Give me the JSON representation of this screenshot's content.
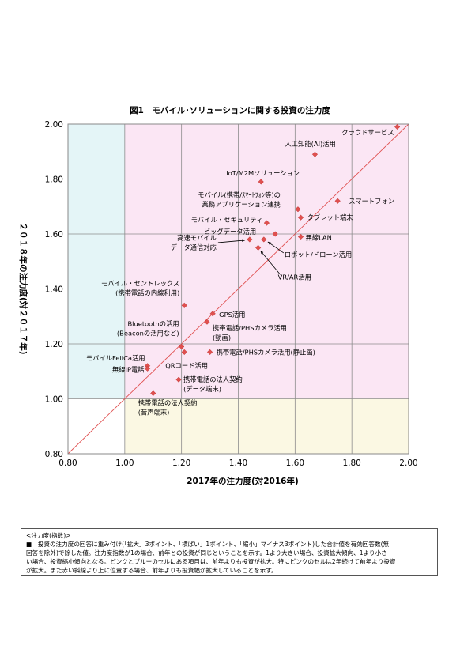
{
  "chart_data": {
    "type": "scatter",
    "title": "図1　モバイル･ソリューションに関する投資の注力度",
    "xlabel": "2017年の注力度(対2016年)",
    "ylabel": "２０１８年の注力度(対２０１７年)",
    "xlim": [
      0.8,
      2.0
    ],
    "ylim": [
      0.8,
      2.0
    ],
    "x_ticks": [
      "0.80",
      "1.00",
      "1.20",
      "1.40",
      "1.60",
      "1.80",
      "2.00"
    ],
    "y_ticks": [
      "0.80",
      "1.00",
      "1.20",
      "1.40",
      "1.60",
      "1.80",
      "2.00"
    ],
    "grid": true,
    "diagonal_line": true,
    "colors": {
      "pink_region": "#fbe6f4",
      "blue_region": "#e4f5f7",
      "yellow_region": "#fbf8e3",
      "marker": "#e0504f",
      "diagonal": "#e05050"
    },
    "points": [
      {
        "label": "クラウドサービス",
        "x": 1.96,
        "y": 1.99
      },
      {
        "label": "人工知能(AI)活用",
        "x": 1.67,
        "y": 1.89
      },
      {
        "label": "IoT/M2Mソリューション",
        "x": 1.48,
        "y": 1.79
      },
      {
        "label": "スマートフォン",
        "x": 1.75,
        "y": 1.72
      },
      {
        "label": "モバイル(携帯/ｽﾏｰﾄﾌｫﾝ等)の\n業務アプリケーション連携",
        "x": 1.61,
        "y": 1.69
      },
      {
        "label": "タブレット端末",
        "x": 1.62,
        "y": 1.66
      },
      {
        "label": "モバイル・セキュリティ",
        "x": 1.5,
        "y": 1.64
      },
      {
        "label": "ビッグデータ活用",
        "x": 1.53,
        "y": 1.6
      },
      {
        "label": "無線LAN",
        "x": 1.62,
        "y": 1.59
      },
      {
        "label": "高速モバイル\nデータ通信対応",
        "x": 1.44,
        "y": 1.58
      },
      {
        "label": "ロボット/ドローン活用",
        "x": 1.49,
        "y": 1.58
      },
      {
        "label": "VR/AR活用",
        "x": 1.47,
        "y": 1.55
      },
      {
        "label": "モバイル・セントレックス\n(携帯電話の内線利用)",
        "x": 1.21,
        "y": 1.34
      },
      {
        "label": "GPS活用",
        "x": 1.31,
        "y": 1.31
      },
      {
        "label": "携帯電話/PHSカメラ活用\n(動画)",
        "x": 1.29,
        "y": 1.28
      },
      {
        "label": "Bluetoothの活用\n(Beaconの活用など)",
        "x": 1.2,
        "y": 1.19
      },
      {
        "label": "QRコード活用",
        "x": 1.21,
        "y": 1.17
      },
      {
        "label": "携帯電話/PHSカメラ活用(静止画)",
        "x": 1.3,
        "y": 1.17
      },
      {
        "label": "モバイルFeliCa活用",
        "x": 1.08,
        "y": 1.12
      },
      {
        "label": "無線IP電話",
        "x": 1.08,
        "y": 1.11
      },
      {
        "label": "携帯電話の法人契約\n(データ端末)",
        "x": 1.19,
        "y": 1.07
      },
      {
        "label": "携帯電話の法人契約\n(音声端末)",
        "x": 1.1,
        "y": 1.02
      }
    ]
  },
  "note": {
    "title": "<注力度(指数)>",
    "line1": "■　投資の注力度の回答に重み付け(「拡大」3ポイント、「横ばい」1ポイント、「縮小」マイナス3ポイント)した合計値を有効回答数(無",
    "line2": "回答を除外)で除した値。注力度指数が1の場合、前年との投資が同じということを示す。1より大きい場合、投資拡大傾向、1より小さ",
    "line3": "い場合、投資縮小傾向となる。ピンクとブルーのセルにある項目は、前年よりも投資が拡大。特にピンクのセルは2年続けて前年より投資",
    "line4": "が拡大。また赤い斜線より上に位置する場合、前年よりも投資幅が拡大していることを示す。"
  }
}
